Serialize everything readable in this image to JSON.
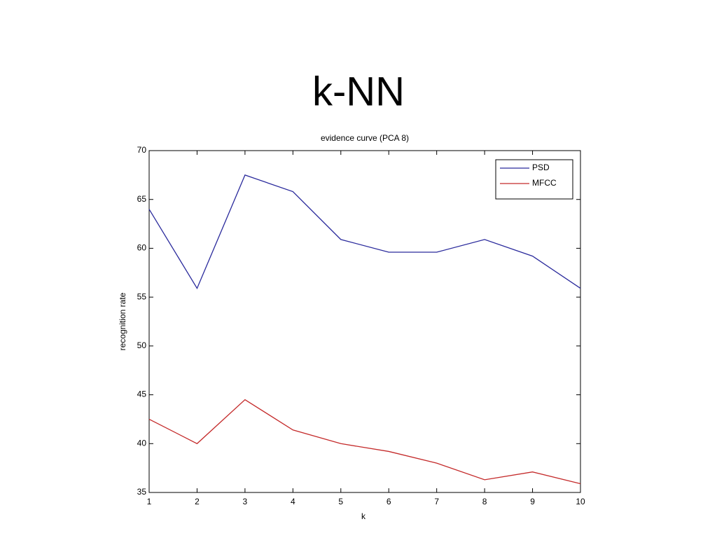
{
  "slide_title": "k-NN",
  "chart_data": {
    "type": "line",
    "title": "evidence curve (PCA 8)",
    "x_label": "k",
    "y_label": "recognition rate",
    "x": [
      1,
      2,
      3,
      4,
      5,
      6,
      7,
      8,
      9,
      10
    ],
    "series": [
      {
        "name": "PSD",
        "color": "#2a2a9c",
        "values": [
          64.0,
          55.9,
          67.5,
          65.8,
          60.9,
          59.6,
          59.6,
          60.9,
          59.2,
          55.9
        ]
      },
      {
        "name": "MFCC",
        "color": "#c42a2a",
        "values": [
          42.5,
          40.0,
          44.5,
          41.4,
          40.0,
          39.2,
          38.0,
          36.3,
          37.1,
          35.9
        ]
      }
    ],
    "xlim": [
      1,
      10
    ],
    "xticks": [
      1,
      2,
      3,
      4,
      5,
      6,
      7,
      8,
      9,
      10
    ],
    "ylim": [
      35,
      70
    ],
    "yticks": [
      35,
      40,
      45,
      50,
      55,
      60,
      65,
      70
    ],
    "grid": false,
    "legend": "upper right"
  }
}
